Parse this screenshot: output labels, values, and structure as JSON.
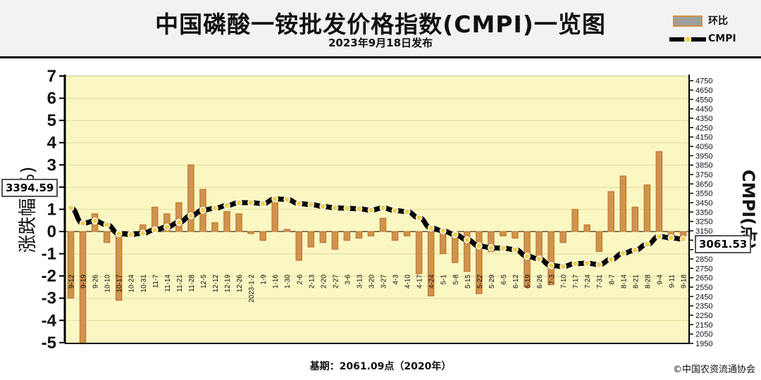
{
  "title": "中国磷酸一铵批发价格指数(CMPI)一览图",
  "subtitle": "2023年9月18日发布",
  "legend": {
    "bar": "环比",
    "line": "CMPI"
  },
  "footer": {
    "base": "基期：2061.09点（2020年）",
    "copyright": "©中国农资流通协会"
  },
  "colors": {
    "bar": "#d4923f",
    "bar_stroke": "#b8743a",
    "line": "#000000",
    "marker": "#f3d14a",
    "band": "#faf7c3"
  },
  "chart_data": {
    "type": "bar+line",
    "ylabel_left": "涨跌幅(%)",
    "ylabel_right": "CMPI(点)",
    "left_ylim": [
      -5,
      7
    ],
    "left_ticks": [
      -5,
      -4,
      -3,
      -2,
      -1,
      0,
      1,
      2,
      3,
      4,
      5,
      6,
      7
    ],
    "right_ylim": [
      1950,
      4800
    ],
    "right_ticks": [
      1950,
      2050,
      2150,
      2250,
      2350,
      2450,
      2550,
      2650,
      2750,
      2850,
      2950,
      3050,
      3150,
      3250,
      3350,
      3450,
      3550,
      3650,
      3750,
      3850,
      3950,
      4050,
      4150,
      4250,
      4350,
      4450,
      4550,
      4650,
      4750
    ],
    "x": [
      "9-12",
      "9-19",
      "9-26",
      "10-10",
      "10-17",
      "10-24",
      "10-31",
      "11-7",
      "11-14",
      "11-21",
      "11-28",
      "12-5",
      "12-12",
      "12-19",
      "12-26",
      "2023-1-2",
      "1-9",
      "1-16",
      "1-30",
      "2-6",
      "2-13",
      "2-20",
      "2-27",
      "3-6",
      "3-13",
      "3-20",
      "3-27",
      "4-3",
      "4-10",
      "4-17",
      "4-24",
      "5-1",
      "5-8",
      "5-15",
      "5-22",
      "5-29",
      "6-5",
      "6-12",
      "6-19",
      "6-26",
      "7-3",
      "7-10",
      "7-17",
      "7-24",
      "7-31",
      "8-7",
      "8-14",
      "8-21",
      "8-28",
      "9-4",
      "9-11",
      "9-18"
    ],
    "series": [
      {
        "name": "环比",
        "kind": "bar",
        "values": [
          -3.0,
          -5.0,
          0.8,
          -0.5,
          -3.1,
          -0.2,
          0.3,
          1.1,
          0.8,
          1.3,
          3.0,
          1.9,
          0.4,
          0.9,
          0.8,
          -0.1,
          -0.4,
          1.3,
          0.1,
          -1.3,
          -0.7,
          -0.5,
          -0.8,
          -0.4,
          -0.3,
          -0.2,
          0.6,
          -0.4,
          -0.2,
          -1.9,
          -2.9,
          -1.0,
          -1.4,
          -1.8,
          -2.8,
          -0.9,
          -0.2,
          -0.3,
          -2.5,
          -1.2,
          -2.4,
          -0.5,
          1.0,
          0.3,
          -0.9,
          1.8,
          2.5,
          1.1,
          2.1,
          3.6,
          -0.4,
          -0.2
        ]
      },
      {
        "name": "CMPI",
        "kind": "line",
        "values": [
          3394.59,
          3230,
          3255,
          3215,
          3120,
          3110,
          3125,
          3160,
          3190,
          3240,
          3310,
          3370,
          3390,
          3420,
          3450,
          3450,
          3440,
          3490,
          3485,
          3440,
          3430,
          3410,
          3395,
          3390,
          3385,
          3370,
          3395,
          3365,
          3355,
          3290,
          3180,
          3150,
          3110,
          3055,
          2990,
          2970,
          2965,
          2950,
          2880,
          2850,
          2780,
          2770,
          2800,
          2805,
          2790,
          2845,
          2910,
          2945,
          3005,
          3090,
          3075,
          3061.53
        ]
      }
    ],
    "callouts": {
      "first": "3394.59",
      "last": "3061.53"
    }
  }
}
